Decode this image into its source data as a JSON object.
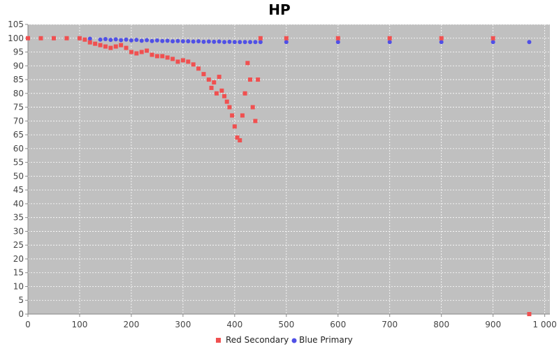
{
  "chart_data": {
    "type": "scatter",
    "title": "HP",
    "xlabel": "",
    "ylabel": "",
    "xlim": [
      0,
      1010
    ],
    "ylim": [
      0,
      105
    ],
    "x_ticks": [
      0,
      100,
      200,
      300,
      400,
      500,
      600,
      700,
      800,
      900,
      1000
    ],
    "x_tick_labels": [
      "0",
      "100",
      "200",
      "300",
      "400",
      "500",
      "600",
      "700",
      "800",
      "900",
      "1 000"
    ],
    "y_ticks": [
      0,
      5,
      10,
      15,
      20,
      25,
      30,
      35,
      40,
      45,
      50,
      55,
      60,
      65,
      70,
      75,
      80,
      85,
      90,
      95,
      100,
      105
    ],
    "grid": true,
    "legend_position": "bottom",
    "series": [
      {
        "name": "Red Secondary",
        "marker": "square",
        "color": "#f05050",
        "x": [
          0,
          25,
          50,
          75,
          100,
          110,
          120,
          130,
          140,
          150,
          160,
          170,
          180,
          190,
          200,
          210,
          220,
          230,
          240,
          250,
          260,
          270,
          280,
          290,
          300,
          310,
          320,
          330,
          340,
          350,
          355,
          360,
          365,
          370,
          375,
          380,
          385,
          390,
          395,
          400,
          405,
          410,
          415,
          420,
          425,
          430,
          435,
          440,
          445,
          450,
          500,
          600,
          700,
          800,
          900,
          970
        ],
        "y": [
          100,
          100,
          100,
          100,
          100,
          99.5,
          98.5,
          98,
          97.5,
          97,
          96.5,
          97,
          97.5,
          96.5,
          95,
          94.5,
          95,
          95.5,
          94,
          93.5,
          93.5,
          93,
          92.5,
          91.5,
          92,
          91.5,
          90.5,
          89,
          87,
          85,
          82,
          84,
          80,
          86,
          81,
          79,
          77,
          75,
          72,
          68,
          64,
          63,
          72,
          80,
          91,
          85,
          75,
          70,
          85,
          100,
          100,
          100,
          100,
          100,
          100,
          0
        ]
      },
      {
        "name": "Blue Primary",
        "marker": "circle",
        "color": "#5050e6",
        "x": [
          0,
          50,
          100,
          120,
          140,
          150,
          160,
          170,
          180,
          190,
          200,
          210,
          220,
          230,
          240,
          250,
          260,
          270,
          280,
          290,
          300,
          310,
          320,
          330,
          340,
          350,
          360,
          370,
          380,
          390,
          400,
          410,
          420,
          430,
          440,
          450,
          500,
          600,
          700,
          800,
          900,
          970
        ],
        "y": [
          100,
          100,
          100,
          99.8,
          99.5,
          99.7,
          99.4,
          99.6,
          99.3,
          99.5,
          99.2,
          99.4,
          99.1,
          99.3,
          99.0,
          99.2,
          99.0,
          99.1,
          98.9,
          99.0,
          98.9,
          98.9,
          98.8,
          98.9,
          98.7,
          98.8,
          98.7,
          98.8,
          98.6,
          98.7,
          98.6,
          98.6,
          98.6,
          98.6,
          98.6,
          98.6,
          98.6,
          98.6,
          98.6,
          98.6,
          98.6,
          98.6
        ]
      }
    ]
  }
}
